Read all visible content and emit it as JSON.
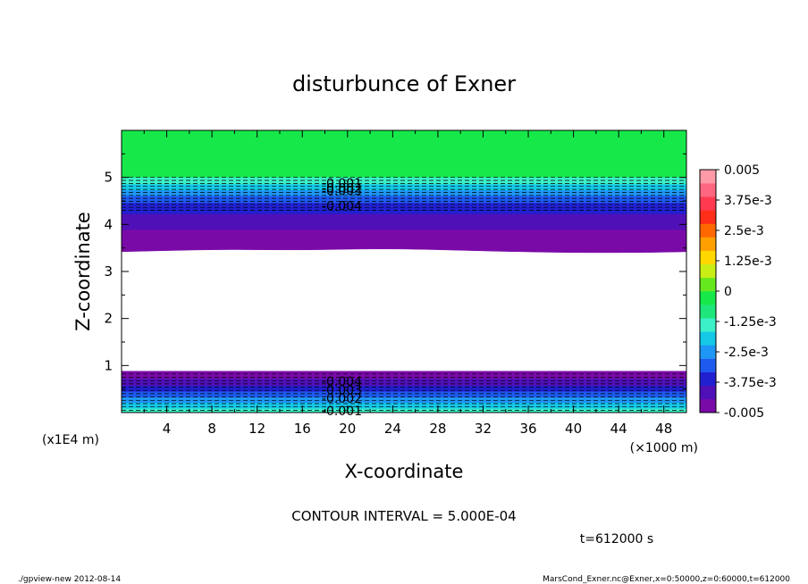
{
  "chart_data": {
    "type": "contour",
    "title": "disturbunce of Exner",
    "xlabel": "X-coordinate",
    "ylabel": "Z-coordinate",
    "x_unit": "(×1000 m)",
    "y_unit": "(x1E4 m)",
    "xlim": [
      0,
      50
    ],
    "ylim": [
      0,
      6
    ],
    "x_ticks": [
      4,
      8,
      12,
      16,
      20,
      24,
      28,
      32,
      36,
      40,
      44,
      48
    ],
    "y_ticks": [
      1,
      2,
      3,
      4,
      5
    ],
    "contour_interval_text": "CONTOUR INTERVAL = 5.000E-04",
    "time_text": "t=612000 s",
    "colorbar": {
      "range": [
        -0.005,
        0.005
      ],
      "labels": [
        {
          "value": 0.005,
          "text": "0.005"
        },
        {
          "value": 0.00375,
          "text": "3.75e-3"
        },
        {
          "value": 0.0025,
          "text": "2.5e-3"
        },
        {
          "value": 0.00125,
          "text": "1.25e-3"
        },
        {
          "value": 0,
          "text": "0"
        },
        {
          "value": -0.00125,
          "text": "-1.25e-3"
        },
        {
          "value": -0.0025,
          "text": "-2.5e-3"
        },
        {
          "value": -0.00375,
          "text": "-3.75e-3"
        },
        {
          "value": -0.005,
          "text": "-0.005"
        }
      ],
      "colors": [
        "#7a0aa8",
        "#5010b8",
        "#2020d0",
        "#1e5aee",
        "#1e96f5",
        "#14c8e6",
        "#3cf0c8",
        "#1ee67a",
        "#16e84a",
        "#66e81e",
        "#c8ee16",
        "#ffd800",
        "#ffa000",
        "#ff6800",
        "#ff2e18",
        "#ff3a50",
        "#ff6680",
        "#ff9aa8"
      ]
    },
    "bands": {
      "upper": [
        {
          "z0": 5.0,
          "z1": 6.0,
          "color": "#16e84a"
        },
        {
          "z0": 4.85,
          "z1": 5.0,
          "color": "#3cf0c8"
        },
        {
          "z0": 4.72,
          "z1": 4.85,
          "color": "#14c8e6"
        },
        {
          "z0": 4.6,
          "z1": 4.72,
          "color": "#1e96f5"
        },
        {
          "z0": 4.45,
          "z1": 4.6,
          "color": "#1e5aee"
        },
        {
          "z0": 4.22,
          "z1": 4.45,
          "color": "#2020d0"
        },
        {
          "z0": 3.88,
          "z1": 4.22,
          "color": "#5010b8"
        },
        {
          "z0": 3.45,
          "z1": 3.88,
          "color": "#7a0aa8"
        }
      ],
      "lower": [
        {
          "z0": 0.72,
          "z1": 0.88,
          "color": "#7a0aa8"
        },
        {
          "z0": 0.56,
          "z1": 0.72,
          "color": "#5010b8"
        },
        {
          "z0": 0.44,
          "z1": 0.56,
          "color": "#2020d0"
        },
        {
          "z0": 0.32,
          "z1": 0.44,
          "color": "#1e5aee"
        },
        {
          "z0": 0.2,
          "z1": 0.32,
          "color": "#1e96f5"
        },
        {
          "z0": 0.08,
          "z1": 0.2,
          "color": "#14c8e6"
        },
        {
          "z0": 0.0,
          "z1": 0.08,
          "color": "#3cf0c8"
        }
      ]
    },
    "contour_labels": [
      {
        "x": 19.5,
        "z": 4.88,
        "text": "-0.001"
      },
      {
        "x": 19.5,
        "z": 4.78,
        "text": "-0.002"
      },
      {
        "x": 19.5,
        "z": 4.72,
        "text": "-0.003"
      },
      {
        "x": 19.5,
        "z": 4.4,
        "text": "-0.004"
      },
      {
        "x": 19.5,
        "z": 0.66,
        "text": "-0.004"
      },
      {
        "x": 19.5,
        "z": 0.48,
        "text": "-0.003"
      },
      {
        "x": 19.5,
        "z": 0.3,
        "text": "-0.002"
      },
      {
        "x": 19.5,
        "z": 0.04,
        "text": "-0.001"
      }
    ]
  },
  "footer": {
    "left": "./gpview-new  2012-08-14",
    "right": "MarsCond_Exner.nc@Exner,x=0:50000,z=0:60000,t=612000"
  }
}
